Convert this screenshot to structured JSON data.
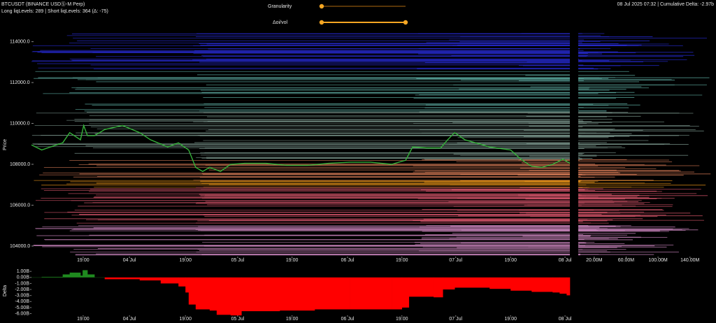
{
  "header": {
    "symbol": "BTCUSDT (BINANCE USDⓈ-M Perp)",
    "levels": "Long liqLevels: 289 | Short liqLevels: 364 (Δ: -75)",
    "status": "08 Jul 2025 07:32 | Cumulative Delta: -2.97b"
  },
  "controls": [
    {
      "label": "Granularity"
    },
    {
      "label": "Δoi/vol"
    }
  ],
  "chart_data": [
    {
      "type": "line",
      "y_label": "Price",
      "color": "#35b23a",
      "x": [
        0,
        1.9,
        5.8,
        7.1,
        9.1,
        9.7,
        10.4,
        11.7,
        13.6,
        16.9,
        20.1,
        22.1,
        25.3,
        27.3,
        29.2,
        30.5,
        31.8,
        33.1,
        35.1,
        37,
        39.6,
        43.5,
        47.4,
        51.3,
        55.2,
        59.1,
        63,
        66.9,
        69.5,
        70.8,
        73.4,
        76,
        77.3,
        78.6,
        80.5,
        82.5,
        85.1,
        89,
        90.9,
        92.9,
        94.8,
        96.8,
        98.7,
        100
      ],
      "values": [
        108950,
        108700,
        109050,
        109550,
        109200,
        109900,
        109400,
        109400,
        109700,
        109900,
        109550,
        109200,
        108850,
        109050,
        108700,
        107850,
        107650,
        107850,
        107650,
        108000,
        108050,
        108050,
        107950,
        107950,
        108050,
        108100,
        108100,
        108000,
        108200,
        108850,
        108800,
        108800,
        109200,
        109550,
        109200,
        109050,
        108850,
        108700,
        108250,
        107900,
        107850,
        108000,
        108250,
        108050
      ],
      "xlim": [
        0,
        100
      ],
      "xticks": [
        {
          "value": 9.6,
          "label": "19:00"
        },
        {
          "value": 18.2,
          "label": "04 Jul"
        },
        {
          "value": 28.6,
          "label": "19:00"
        },
        {
          "value": 38.3,
          "label": "05 Jul"
        },
        {
          "value": 48.4,
          "label": "19:00"
        },
        {
          "value": 58.7,
          "label": "06 Jul"
        },
        {
          "value": 68.8,
          "label": "19:00"
        },
        {
          "value": 78.8,
          "label": "07 Jul"
        },
        {
          "value": 89,
          "label": "19:00"
        },
        {
          "value": 99.1,
          "label": "08 Jul"
        }
      ],
      "ylim": [
        103450,
        114500
      ],
      "yticks": [
        {
          "value": 104000,
          "label": "104000.0"
        },
        {
          "value": 106000,
          "label": "106000.0"
        },
        {
          "value": 108000,
          "label": "108000.0"
        },
        {
          "value": 110000,
          "label": "110000.0"
        },
        {
          "value": 112000,
          "label": "112000.0"
        },
        {
          "value": 114000,
          "label": "114000.0"
        }
      ]
    },
    {
      "type": "profile",
      "xlim": [
        0,
        170000000
      ],
      "xticks": [
        {
          "value": 20000000,
          "label": "20.00M"
        },
        {
          "value": 60000000,
          "label": "60.00M"
        },
        {
          "value": 100000000,
          "label": "100.00M"
        },
        {
          "value": 140000000,
          "label": "140.00M"
        }
      ]
    },
    {
      "type": "delta",
      "y_label": "Delta",
      "pos_color": "#1f8a1f",
      "neg_color": "#ff0000",
      "x": [
        0,
        1.9,
        5.8,
        7.1,
        9.1,
        9.5,
        10.4,
        11.7,
        13.6,
        20.1,
        24,
        27.3,
        28.6,
        29.2,
        30.5,
        33.1,
        34.4,
        37,
        39,
        46.1,
        52.6,
        59.1,
        66.9,
        68.8,
        70.1,
        74.7,
        76.4,
        78.6,
        85.1,
        89,
        92.9,
        96.8,
        98.1,
        99.4
      ],
      "values": [
        0,
        100000000,
        500000000,
        800000000,
        300000000,
        1200000000,
        500000000,
        0,
        -300000000,
        -500000000,
        -1000000000,
        -1500000000,
        -2500000000,
        -4500000000,
        -5300000000,
        -5500000000,
        -6200000000,
        -6300000000,
        -5600000000,
        -5500000000,
        -5300000000,
        -5300000000,
        -5300000000,
        -5000000000,
        -3200000000,
        -3300000000,
        -2000000000,
        -1700000000,
        -1900000000,
        -2200000000,
        -2400000000,
        -2500000000,
        -2700000000,
        -2970000000
      ],
      "xlim": [
        0,
        100
      ],
      "xticks": [
        {
          "value": 9.6,
          "label": "19:00"
        },
        {
          "value": 18.2,
          "label": "04 Jul"
        },
        {
          "value": 28.6,
          "label": "19:00"
        },
        {
          "value": 38.3,
          "label": "05 Jul"
        },
        {
          "value": 48.4,
          "label": "19:00"
        },
        {
          "value": 58.7,
          "label": "06 Jul"
        },
        {
          "value": 68.8,
          "label": "19:00"
        },
        {
          "value": 78.8,
          "label": "07 Jul"
        },
        {
          "value": 89,
          "label": "19:00"
        },
        {
          "value": 99.1,
          "label": "08 Jul"
        }
      ],
      "ylim": [
        -6400000000,
        1600000000
      ],
      "yticks": [
        {
          "value": 1000000000,
          "label": "1.00B"
        },
        {
          "value": 0,
          "label": "0.00B"
        },
        {
          "value": -1000000000,
          "label": "-1.00B"
        },
        {
          "value": -2000000000,
          "label": "-2.00B"
        },
        {
          "value": -3000000000,
          "label": "-3.00B"
        },
        {
          "value": -4000000000,
          "label": "-4.00B"
        },
        {
          "value": -5000000000,
          "label": "-5.00B"
        },
        {
          "value": -6000000000,
          "label": "-6.00B"
        }
      ]
    }
  ]
}
